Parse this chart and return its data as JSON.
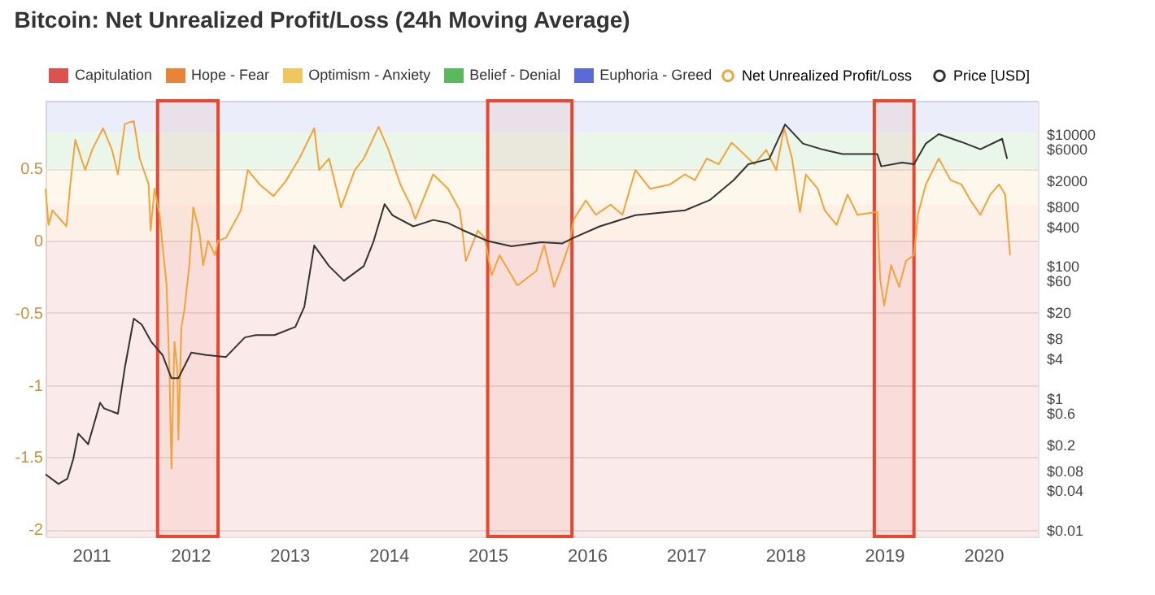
{
  "chart_data": {
    "type": "line",
    "title": "Bitcoin: Net Unrealized Profit/Loss (24h Moving Average)",
    "xlim": [
      2010.54,
      2020.55
    ],
    "xticks": [
      2011,
      2012,
      2013,
      2014,
      2015,
      2016,
      2017,
      2018,
      2019,
      2020
    ],
    "ylim": [
      -2.05,
      0.97
    ],
    "yticks": [
      -2,
      -1.5,
      -1,
      -0.5,
      0,
      0.5
    ],
    "y2lim": [
      0.008,
      32000
    ],
    "log": "y2",
    "y2ticks": [
      {
        "value": 10000,
        "label": "$10000"
      },
      {
        "value": 6000,
        "label": "$6000"
      },
      {
        "value": 2000,
        "label": "$2000"
      },
      {
        "value": 800,
        "label": "$800"
      },
      {
        "value": 400,
        "label": "$400"
      },
      {
        "value": 100,
        "label": "$100"
      },
      {
        "value": 60,
        "label": "$60"
      },
      {
        "value": 20,
        "label": "$20"
      },
      {
        "value": 8,
        "label": "$8"
      },
      {
        "value": 4,
        "label": "$4"
      },
      {
        "value": 1,
        "label": "$1"
      },
      {
        "value": 0.6,
        "label": "$0.6"
      },
      {
        "value": 0.2,
        "label": "$0.2"
      },
      {
        "value": 0.08,
        "label": "$0.08"
      },
      {
        "value": 0.04,
        "label": "$0.04"
      },
      {
        "value": 0.01,
        "label": "$0.01"
      }
    ],
    "grid": "y",
    "legend": "top",
    "series": [
      {
        "name": "Net Unrealized Profit/Loss",
        "color": "#f2a33a",
        "x": [
          2010.54,
          2010.57,
          2010.61,
          2010.75,
          2010.79,
          2010.84,
          2010.9,
          2010.94,
          2011.01,
          2011.12,
          2011.21,
          2011.27,
          2011.34,
          2011.43,
          2011.49,
          2011.58,
          2011.6,
          2011.64,
          2011.69,
          2011.72,
          2011.76,
          2011.79,
          2011.81,
          2011.84,
          2011.87,
          2011.88,
          2011.91,
          2011.94,
          2011.99,
          2012.03,
          2012.09,
          2012.13,
          2012.18,
          2012.25,
          2012.28,
          2012.36,
          2012.51,
          2012.58,
          2012.7,
          2012.84,
          2012.96,
          2013.1,
          2013.25,
          2013.3,
          2013.4,
          2013.52,
          2013.66,
          2013.75,
          2013.9,
          2014.0,
          2014.12,
          2014.22,
          2014.27,
          2014.45,
          2014.6,
          2014.72,
          2014.78,
          2014.9,
          2014.97,
          2015.04,
          2015.12,
          2015.3,
          2015.49,
          2015.57,
          2015.67,
          2015.75,
          2015.82,
          2015.87,
          2015.99,
          2016.09,
          2016.24,
          2016.36,
          2016.49,
          2016.64,
          2016.84,
          2016.99,
          2017.09,
          2017.21,
          2017.33,
          2017.46,
          2017.54,
          2017.69,
          2017.81,
          2017.91,
          2017.99,
          2018.07,
          2018.15,
          2018.21,
          2018.33,
          2018.4,
          2018.52,
          2018.63,
          2018.73,
          2018.93,
          2018.96,
          2019.0,
          2019.07,
          2019.15,
          2019.22,
          2019.3,
          2019.34,
          2019.42,
          2019.55,
          2019.67,
          2019.78,
          2019.87,
          2019.97,
          2020.07,
          2020.16,
          2020.22,
          2020.27
        ],
        "values": [
          0.36,
          0.11,
          0.21,
          0.1,
          0.39,
          0.7,
          0.57,
          0.49,
          0.63,
          0.78,
          0.63,
          0.46,
          0.81,
          0.83,
          0.57,
          0.39,
          0.07,
          0.36,
          0.18,
          -0.03,
          -0.3,
          -0.9,
          -1.58,
          -0.7,
          -0.9,
          -1.38,
          -0.6,
          -0.48,
          -0.17,
          0.23,
          0.07,
          -0.17,
          0,
          -0.1,
          0,
          0.02,
          0.21,
          0.49,
          0.39,
          0.31,
          0.41,
          0.57,
          0.78,
          0.49,
          0.57,
          0.23,
          0.49,
          0.57,
          0.79,
          0.63,
          0.39,
          0.25,
          0.15,
          0.46,
          0.36,
          0.21,
          -0.14,
          0.07,
          0.02,
          -0.24,
          -0.1,
          -0.31,
          -0.21,
          -0.03,
          -0.32,
          -0.17,
          -0.03,
          0.15,
          0.28,
          0.18,
          0.25,
          0.18,
          0.49,
          0.36,
          0.39,
          0.46,
          0.42,
          0.57,
          0.53,
          0.68,
          0.63,
          0.53,
          0.63,
          0.49,
          0.78,
          0.57,
          0.2,
          0.46,
          0.36,
          0.21,
          0.11,
          0.32,
          0.18,
          0.2,
          -0.27,
          -0.45,
          -0.17,
          -0.32,
          -0.14,
          -0.1,
          0.18,
          0.39,
          0.57,
          0.42,
          0.39,
          0.28,
          0.18,
          0.32,
          0.39,
          0.32,
          -0.1
        ]
      },
      {
        "name": "Price [USD]",
        "color": "#333333",
        "axis": "y2",
        "x": [
          2010.54,
          2010.67,
          2010.76,
          2010.82,
          2010.87,
          2010.97,
          2011.09,
          2011.13,
          2011.27,
          2011.34,
          2011.43,
          2011.51,
          2011.61,
          2011.72,
          2011.81,
          2011.88,
          2012.01,
          2012.16,
          2012.36,
          2012.55,
          2012.66,
          2012.85,
          2013.06,
          2013.15,
          2013.25,
          2013.4,
          2013.55,
          2013.75,
          2013.85,
          2013.96,
          2014.04,
          2014.25,
          2014.45,
          2014.6,
          2014.75,
          2015.0,
          2015.24,
          2015.54,
          2015.75,
          2015.87,
          2016.13,
          2016.49,
          2016.99,
          2017.24,
          2017.48,
          2017.63,
          2017.84,
          2018.0,
          2018.18,
          2018.37,
          2018.58,
          2018.93,
          2018.97,
          2019.18,
          2019.3,
          2019.42,
          2019.55,
          2019.78,
          2019.97,
          2020.19,
          2020.24
        ],
        "values": [
          0.07,
          0.05,
          0.06,
          0.12,
          0.29,
          0.2,
          0.85,
          0.7,
          0.58,
          2.9,
          16,
          13,
          7,
          4.5,
          2,
          2,
          4.9,
          4.5,
          4.2,
          8.3,
          9,
          9,
          12,
          24,
          205,
          100,
          60,
          100,
          240,
          870,
          590,
          400,
          500,
          450,
          350,
          240,
          200,
          230,
          220,
          270,
          400,
          590,
          700,
          1000,
          2000,
          3500,
          4200,
          14000,
          7200,
          5900,
          5000,
          5000,
          3250,
          3700,
          3500,
          7200,
          10000,
          7600,
          5900,
          8500,
          4200
        ]
      }
    ],
    "bands": [
      {
        "axis": "y",
        "from": -2.05,
        "to": 0,
        "label": "Capitulation",
        "color": "#d9534f"
      },
      {
        "axis": "y",
        "from": 0,
        "to": 0.25,
        "label": "Hope - Fear",
        "color": "#e8833a"
      },
      {
        "axis": "y",
        "from": 0.25,
        "to": 0.5,
        "label": "Optimism - Anxiety",
        "color": "#f0c75e"
      },
      {
        "axis": "y",
        "from": 0.5,
        "to": 0.75,
        "label": "Belief - Denial",
        "color": "#5cb85c"
      },
      {
        "axis": "y",
        "from": 0.75,
        "to": 0.97,
        "label": "Euphoria - Greed",
        "color": "#5b6bd6"
      },
      {
        "axis": "x",
        "from": 2011.67,
        "to": 2012.28,
        "color": "#e8472f"
      },
      {
        "axis": "x",
        "from": 2015.0,
        "to": 2015.85,
        "color": "#e8472f"
      },
      {
        "axis": "x",
        "from": 2018.9,
        "to": 2019.3,
        "color": "#e8472f"
      }
    ]
  }
}
